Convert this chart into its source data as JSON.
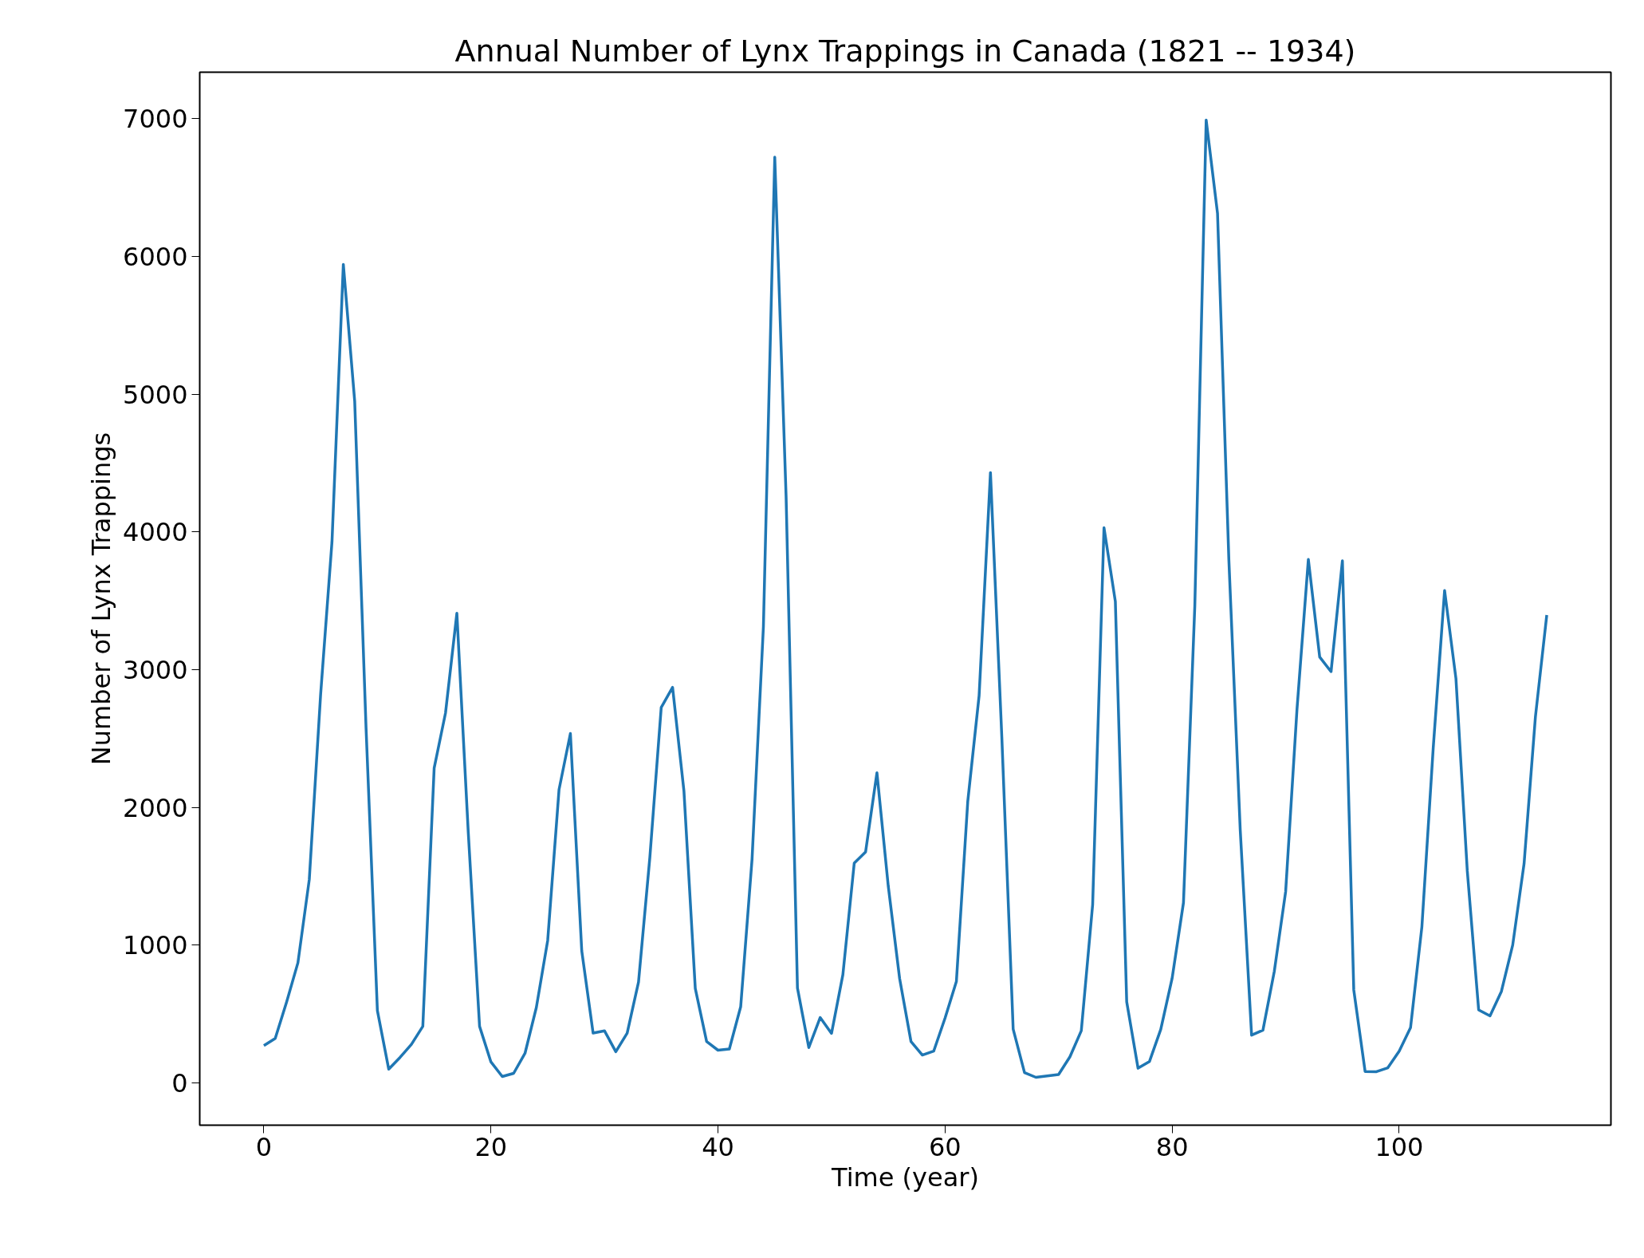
{
  "chart_data": {
    "type": "line",
    "title": "Annual Number of Lynx Trappings in Canada (1821 -- 1934)",
    "xlabel": "Time (year)",
    "ylabel": "Number of Lynx Trappings",
    "x": [
      0,
      1,
      2,
      3,
      4,
      5,
      6,
      7,
      8,
      9,
      10,
      11,
      12,
      13,
      14,
      15,
      16,
      17,
      18,
      19,
      20,
      21,
      22,
      23,
      24,
      25,
      26,
      27,
      28,
      29,
      30,
      31,
      32,
      33,
      34,
      35,
      36,
      37,
      38,
      39,
      40,
      41,
      42,
      43,
      44,
      45,
      46,
      47,
      48,
      49,
      50,
      51,
      52,
      53,
      54,
      55,
      56,
      57,
      58,
      59,
      60,
      61,
      62,
      63,
      64,
      65,
      66,
      67,
      68,
      69,
      70,
      71,
      72,
      73,
      74,
      75,
      76,
      77,
      78,
      79,
      80,
      81,
      82,
      83,
      84,
      85,
      86,
      87,
      88,
      89,
      90,
      91,
      92,
      93,
      94,
      95,
      96,
      97,
      98,
      99,
      100,
      101,
      102,
      103,
      104,
      105,
      106,
      107,
      108,
      109,
      110,
      111,
      112,
      113
    ],
    "series": [
      {
        "color": "#1f77b4",
        "values": [
          269,
          321,
          585,
          871,
          1475,
          2821,
          3928,
          5943,
          4950,
          2577,
          523,
          98,
          184,
          279,
          409,
          2285,
          2685,
          3409,
          1824,
          409,
          151,
          45,
          68,
          213,
          546,
          1033,
          2129,
          2536,
          957,
          361,
          377,
          225,
          360,
          731,
          1638,
          2725,
          2871,
          2119,
          684,
          299,
          236,
          245,
          552,
          1623,
          3311,
          6721,
          4254,
          687,
          255,
          473,
          358,
          784,
          1594,
          1676,
          2251,
          1426,
          756,
          299,
          201,
          229,
          469,
          736,
          2042,
          2811,
          4431,
          2511,
          389,
          73,
          39,
          49,
          59,
          188,
          377,
          1292,
          4031,
          3495,
          587,
          105,
          153,
          387,
          758,
          1307,
          3465,
          6991,
          6313,
          3794,
          1836,
          345,
          382,
          808,
          1388,
          2713,
          3800,
          3091,
          2985,
          3790,
          674,
          81,
          80,
          108,
          229,
          399,
          1132,
          2432,
          3574,
          2935,
          1537,
          529,
          485,
          662,
          1000,
          1590,
          2657,
          3396
        ]
      }
    ],
    "xlim": [
      -5.65,
      118.65
    ],
    "ylim": [
      -308.6,
      7338.6
    ],
    "xticks": [
      0,
      20,
      40,
      60,
      80,
      100
    ],
    "yticks": [
      0,
      1000,
      2000,
      3000,
      4000,
      5000,
      6000,
      7000
    ],
    "grid": false,
    "marker": "none",
    "line_style": "solid"
  }
}
